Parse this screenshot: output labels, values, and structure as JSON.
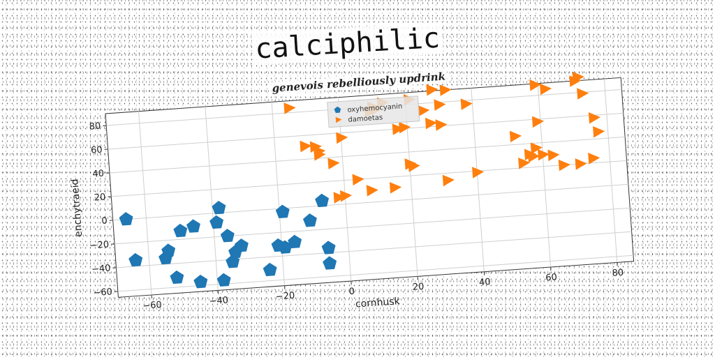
{
  "page": {
    "title": "calciphilic",
    "subtitle": "genevois rebelliously updrink"
  },
  "chart_data": {
    "type": "scatter",
    "title": "calciphilic",
    "subtitle": "genevois rebelliously updrink",
    "xlabel": "cornhusk",
    "ylabel": "enchytraeid",
    "xlim": [
      -70,
      85
    ],
    "ylim": [
      -65,
      90
    ],
    "xticks": [
      -60,
      -40,
      -20,
      0,
      20,
      40,
      60,
      80
    ],
    "yticks": [
      -60,
      -40,
      -20,
      0,
      20,
      40,
      60,
      80
    ],
    "grid": true,
    "legend_position": "top-center",
    "series": [
      {
        "name": "oxyhemocyanin",
        "color": "#1f77b4",
        "marker": "pentagon",
        "points": [
          [
            -66,
            0
          ],
          [
            -64,
            -35
          ],
          [
            -55,
            -35
          ],
          [
            -54,
            -29
          ],
          [
            -52,
            -52
          ],
          [
            -50,
            -13
          ],
          [
            -46,
            -10
          ],
          [
            -45,
            -57
          ],
          [
            -39,
            -8
          ],
          [
            -38,
            4
          ],
          [
            -38,
            -57
          ],
          [
            -36,
            -20
          ],
          [
            -35,
            -42
          ],
          [
            -34,
            -34
          ],
          [
            -32,
            -29
          ],
          [
            -24,
            -51
          ],
          [
            -21,
            -31
          ],
          [
            -19,
            -33
          ],
          [
            -19,
            -3
          ],
          [
            -16,
            -29
          ],
          [
            -11,
            -12
          ],
          [
            -7,
            4
          ],
          [
            -6,
            -36
          ],
          [
            -6,
            -49
          ]
        ]
      },
      {
        "name": "damoetas",
        "color": "#ff7f0e",
        "marker": "triangle-right",
        "points": [
          [
            -15,
            84
          ],
          [
            -11,
            51
          ],
          [
            -8,
            50
          ],
          [
            -7,
            46
          ],
          [
            -7,
            43
          ],
          [
            -3,
            35
          ],
          [
            -2,
            6
          ],
          [
            0,
            7
          ],
          [
            0,
            56
          ],
          [
            4,
            20
          ],
          [
            8,
            10
          ],
          [
            9,
            76
          ],
          [
            10,
            80
          ],
          [
            11,
            78
          ],
          [
            13,
            83
          ],
          [
            15,
            11
          ],
          [
            17,
            60
          ],
          [
            19,
            61
          ],
          [
            20,
            30
          ],
          [
            21,
            84
          ],
          [
            21,
            28
          ],
          [
            25,
            74
          ],
          [
            27,
            63
          ],
          [
            28,
            91
          ],
          [
            30,
            78
          ],
          [
            30,
            61
          ],
          [
            31,
            14
          ],
          [
            32,
            90
          ],
          [
            38,
            77
          ],
          [
            40,
            19
          ],
          [
            52,
            47
          ],
          [
            54,
            24
          ],
          [
            56,
            31
          ],
          [
            57,
            29
          ],
          [
            58,
            36
          ],
          [
            59,
            89
          ],
          [
            59,
            58
          ],
          [
            60,
            30
          ],
          [
            62,
            85
          ],
          [
            63,
            29
          ],
          [
            66,
            20
          ],
          [
            71,
            20
          ],
          [
            71,
            90
          ],
          [
            72,
            93
          ],
          [
            73,
            79
          ],
          [
            75,
            24
          ],
          [
            76,
            58
          ],
          [
            77,
            46
          ]
        ]
      }
    ]
  }
}
